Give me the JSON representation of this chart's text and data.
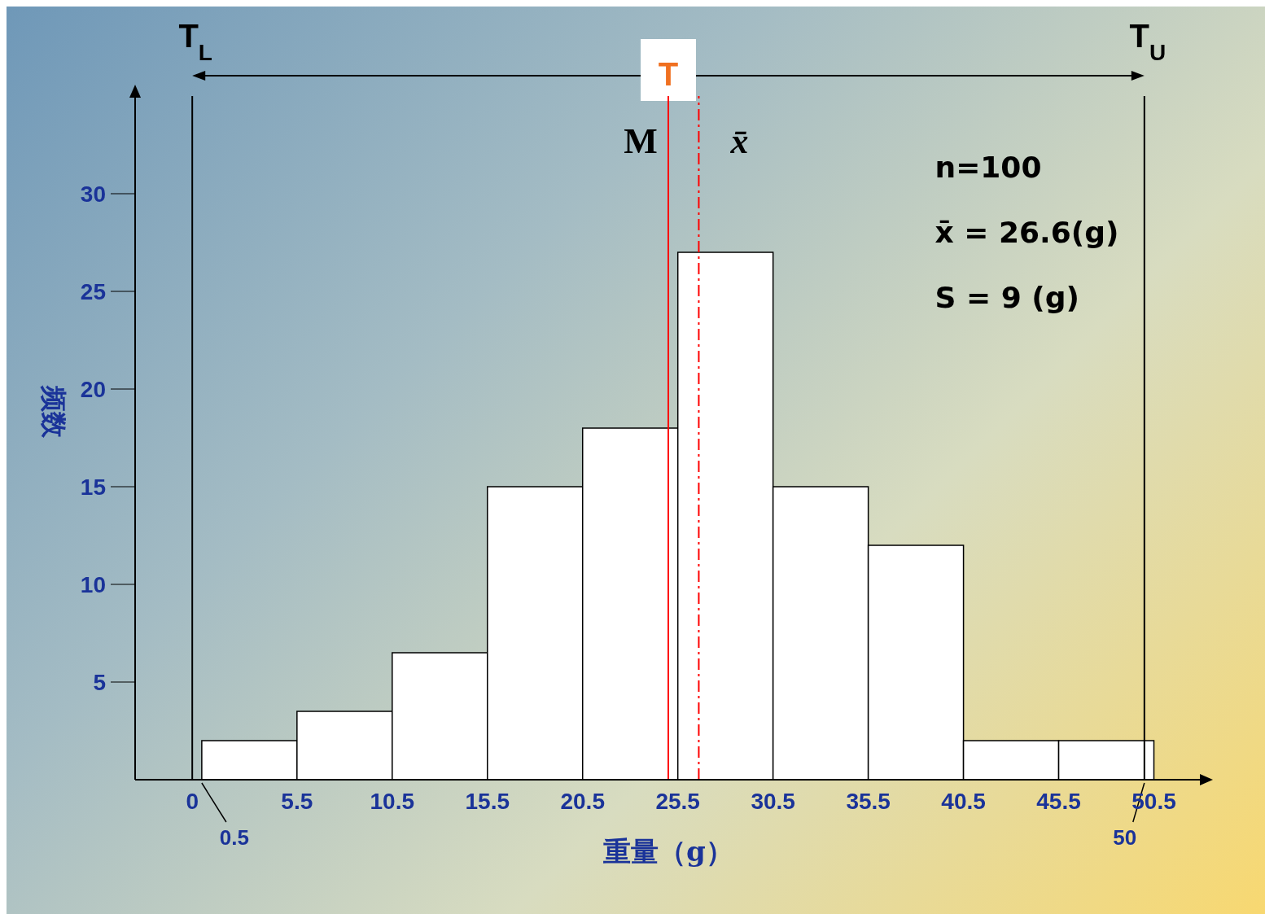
{
  "chart_data": {
    "type": "histogram",
    "xlabel": "重量（g）",
    "ylabel": "频数",
    "bins": [
      0.5,
      5.5,
      10.5,
      15.5,
      20.5,
      25.5,
      30.5,
      35.5,
      40.5,
      45.5,
      50.5
    ],
    "values": [
      2,
      3.5,
      6.5,
      15,
      18,
      27,
      15,
      12,
      2,
      2
    ],
    "color": "#ffffff",
    "xlim": [
      -3,
      53
    ],
    "xticks": [
      0,
      5.5,
      10.5,
      15.5,
      20.5,
      25.5,
      30.5,
      35.5,
      40.5,
      45.5,
      50.5
    ],
    "ylim": [
      0,
      35
    ],
    "yticks": [
      5,
      10,
      15,
      20,
      25,
      30
    ],
    "ref_lines": [
      {
        "axis": "x",
        "value": 0,
        "label": "T$_{L}$",
        "color": "#000000"
      },
      {
        "axis": "x",
        "value": 50,
        "label": "T$_{U}$",
        "color": "#000000"
      },
      {
        "axis": "x",
        "value": 25,
        "label": "M",
        "color": "#ff0000"
      },
      {
        "axis": "x",
        "value": 26.6,
        "label": "x̄",
        "color": "#ff0000",
        "line_style": "dashed"
      }
    ],
    "annotations": [
      "T",
      "n=100",
      "x̄ = 26.6(g)",
      "S = 9 (g)",
      "0.5",
      "50"
    ]
  }
}
